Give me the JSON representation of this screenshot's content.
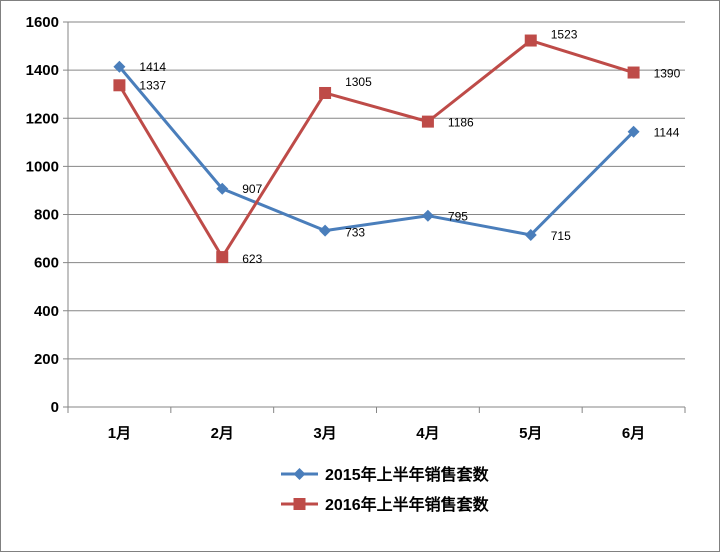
{
  "chart_data": {
    "type": "line",
    "categories": [
      "1月",
      "2月",
      "3月",
      "4月",
      "5月",
      "6月"
    ],
    "series": [
      {
        "name": "2015年上半年销售套数",
        "values": [
          1414,
          907,
          733,
          795,
          715,
          1144
        ],
        "color": "#4a7ebb",
        "marker": "diamond"
      },
      {
        "name": "2016年上半年销售套数",
        "values": [
          1337,
          623,
          1305,
          1186,
          1523,
          1390
        ],
        "color": "#be4b48",
        "marker": "square"
      }
    ],
    "ylim": [
      0,
      1600
    ],
    "yticks": [
      0,
      200,
      400,
      600,
      800,
      1000,
      1200,
      1400,
      1600
    ],
    "grid": true,
    "legend_position": "bottom-right",
    "title": "",
    "xlabel": "",
    "ylabel": ""
  }
}
